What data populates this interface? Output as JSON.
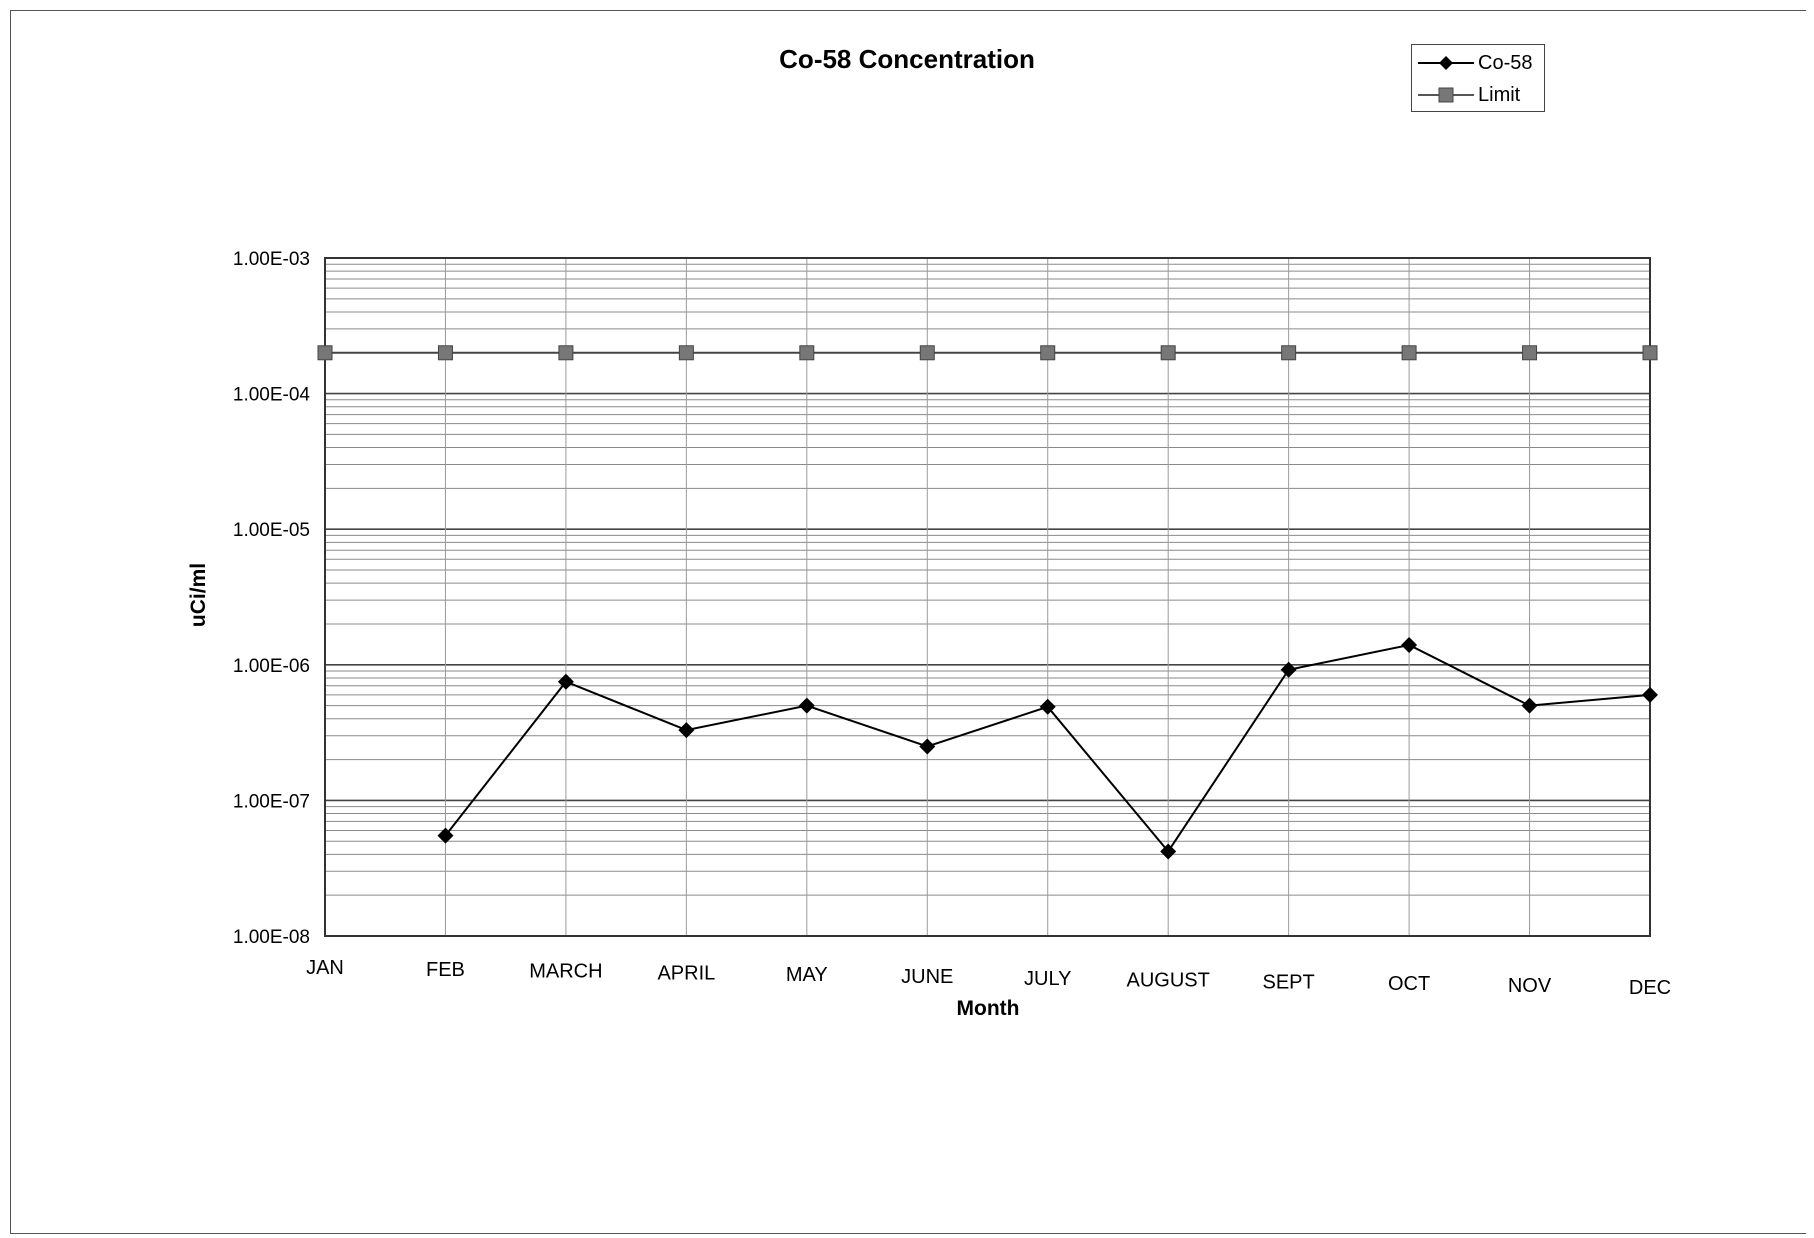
{
  "chart_data": {
    "type": "line",
    "title": "Co-58 Concentration",
    "xlabel": "Month",
    "ylabel": "uCi/ml",
    "yscale": "log",
    "ylim": [
      1e-08,
      0.001
    ],
    "ytick_labels": [
      "1.00E-03",
      "1.00E-04",
      "1.00E-05",
      "1.00E-06",
      "1.00E-07",
      "1.00E-08"
    ],
    "categories": [
      "JAN",
      "FEB",
      "MARCH",
      "APRIL",
      "MAY",
      "JUNE",
      "JULY",
      "AUGUST",
      "SEPT",
      "OCT",
      "NOV",
      "DEC"
    ],
    "grid": true,
    "legend_position": "top-right",
    "series": [
      {
        "name": "Co-58",
        "marker": "diamond",
        "color": "#000000",
        "values": [
          null,
          5.5e-08,
          7.5e-07,
          3.3e-07,
          5e-07,
          2.5e-07,
          4.9e-07,
          4.2e-08,
          9.2e-07,
          1.4e-06,
          5e-07,
          6e-07
        ]
      },
      {
        "name": "Limit",
        "marker": "square",
        "color": "#777777",
        "values": [
          0.0002,
          0.0002,
          0.0002,
          0.0002,
          0.0002,
          0.0002,
          0.0002,
          0.0002,
          0.0002,
          0.0002,
          0.0002,
          0.0002
        ]
      }
    ]
  }
}
